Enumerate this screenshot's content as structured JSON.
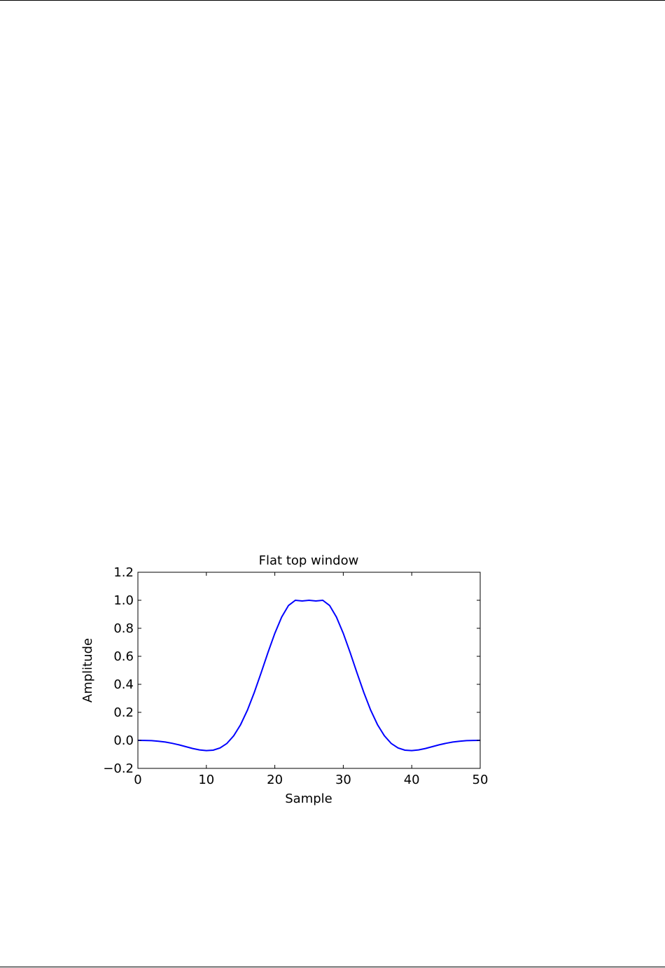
{
  "chart_data": {
    "type": "line",
    "title": "Flat top window",
    "xlabel": "Sample",
    "ylabel": "Amplitude",
    "xlim": [
      0,
      50
    ],
    "ylim": [
      -0.2,
      1.2
    ],
    "xticks": [
      0,
      10,
      20,
      30,
      40,
      50
    ],
    "xtick_labels": [
      "0",
      "10",
      "20",
      "30",
      "40",
      "50"
    ],
    "yticks": [
      -0.2,
      0.0,
      0.2,
      0.4,
      0.6,
      0.8,
      1.0,
      1.2
    ],
    "ytick_labels": [
      "−0.2",
      "0.0",
      "0.2",
      "0.4",
      "0.6",
      "0.8",
      "1.0",
      "1.2"
    ],
    "grid": false,
    "line_color": "#0000ff",
    "series": [
      {
        "x": [
          0,
          1,
          2,
          3,
          4,
          5,
          6,
          7,
          8,
          9,
          10,
          11,
          12,
          13,
          14,
          15,
          16,
          17,
          18,
          19,
          20,
          21,
          22,
          23,
          24,
          25,
          26,
          27,
          28,
          29,
          30,
          31,
          32,
          33,
          34,
          35,
          36,
          37,
          38,
          39,
          40,
          41,
          42,
          43,
          44,
          45,
          46,
          47,
          48,
          49,
          50
        ],
        "values": [
          0.0,
          -0.0005,
          -0.002,
          -0.006,
          -0.012,
          -0.021,
          -0.032,
          -0.045,
          -0.058,
          -0.068,
          -0.073,
          -0.07,
          -0.054,
          -0.022,
          0.033,
          0.112,
          0.216,
          0.342,
          0.482,
          0.627,
          0.764,
          0.88,
          0.963,
          1.0,
          0.995,
          1.0,
          0.995,
          1.0,
          0.963,
          0.88,
          0.764,
          0.627,
          0.482,
          0.342,
          0.216,
          0.112,
          0.033,
          -0.022,
          -0.054,
          -0.07,
          -0.073,
          -0.068,
          -0.058,
          -0.045,
          -0.032,
          -0.021,
          -0.012,
          -0.006,
          -0.002,
          -0.0005,
          0.0
        ]
      }
    ]
  }
}
